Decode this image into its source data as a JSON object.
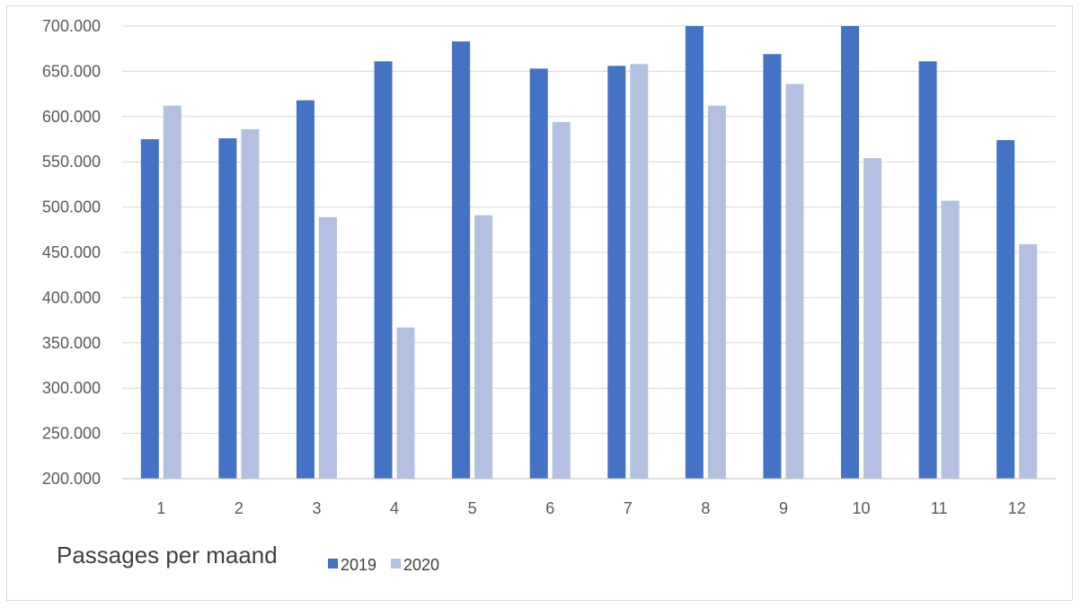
{
  "chart_data": {
    "type": "bar",
    "title": "",
    "caption": "Passages per maand",
    "xlabel": "",
    "ylabel": "",
    "categories": [
      "1",
      "2",
      "3",
      "4",
      "5",
      "6",
      "7",
      "8",
      "9",
      "10",
      "11",
      "12"
    ],
    "series": [
      {
        "name": "2019",
        "color": "#4472c4",
        "values": [
          575000,
          576000,
          618000,
          661000,
          683000,
          653000,
          656000,
          700000,
          669000,
          700000,
          661000,
          574000
        ]
      },
      {
        "name": "2020",
        "color": "#b4c0e0",
        "values": [
          612000,
          586000,
          489000,
          367000,
          491000,
          594000,
          658000,
          612000,
          636000,
          554000,
          507000,
          459000
        ]
      }
    ],
    "ylim": [
      200000,
      700000
    ],
    "yticks": [
      "200.000",
      "250.000",
      "300.000",
      "350.000",
      "400.000",
      "450.000",
      "500.000",
      "550.000",
      "600.000",
      "650.000",
      "700.000"
    ],
    "ytick_values": [
      200000,
      250000,
      300000,
      350000,
      400000,
      450000,
      500000,
      550000,
      600000,
      650000,
      700000
    ],
    "grid": true,
    "legend_position": "bottom"
  }
}
